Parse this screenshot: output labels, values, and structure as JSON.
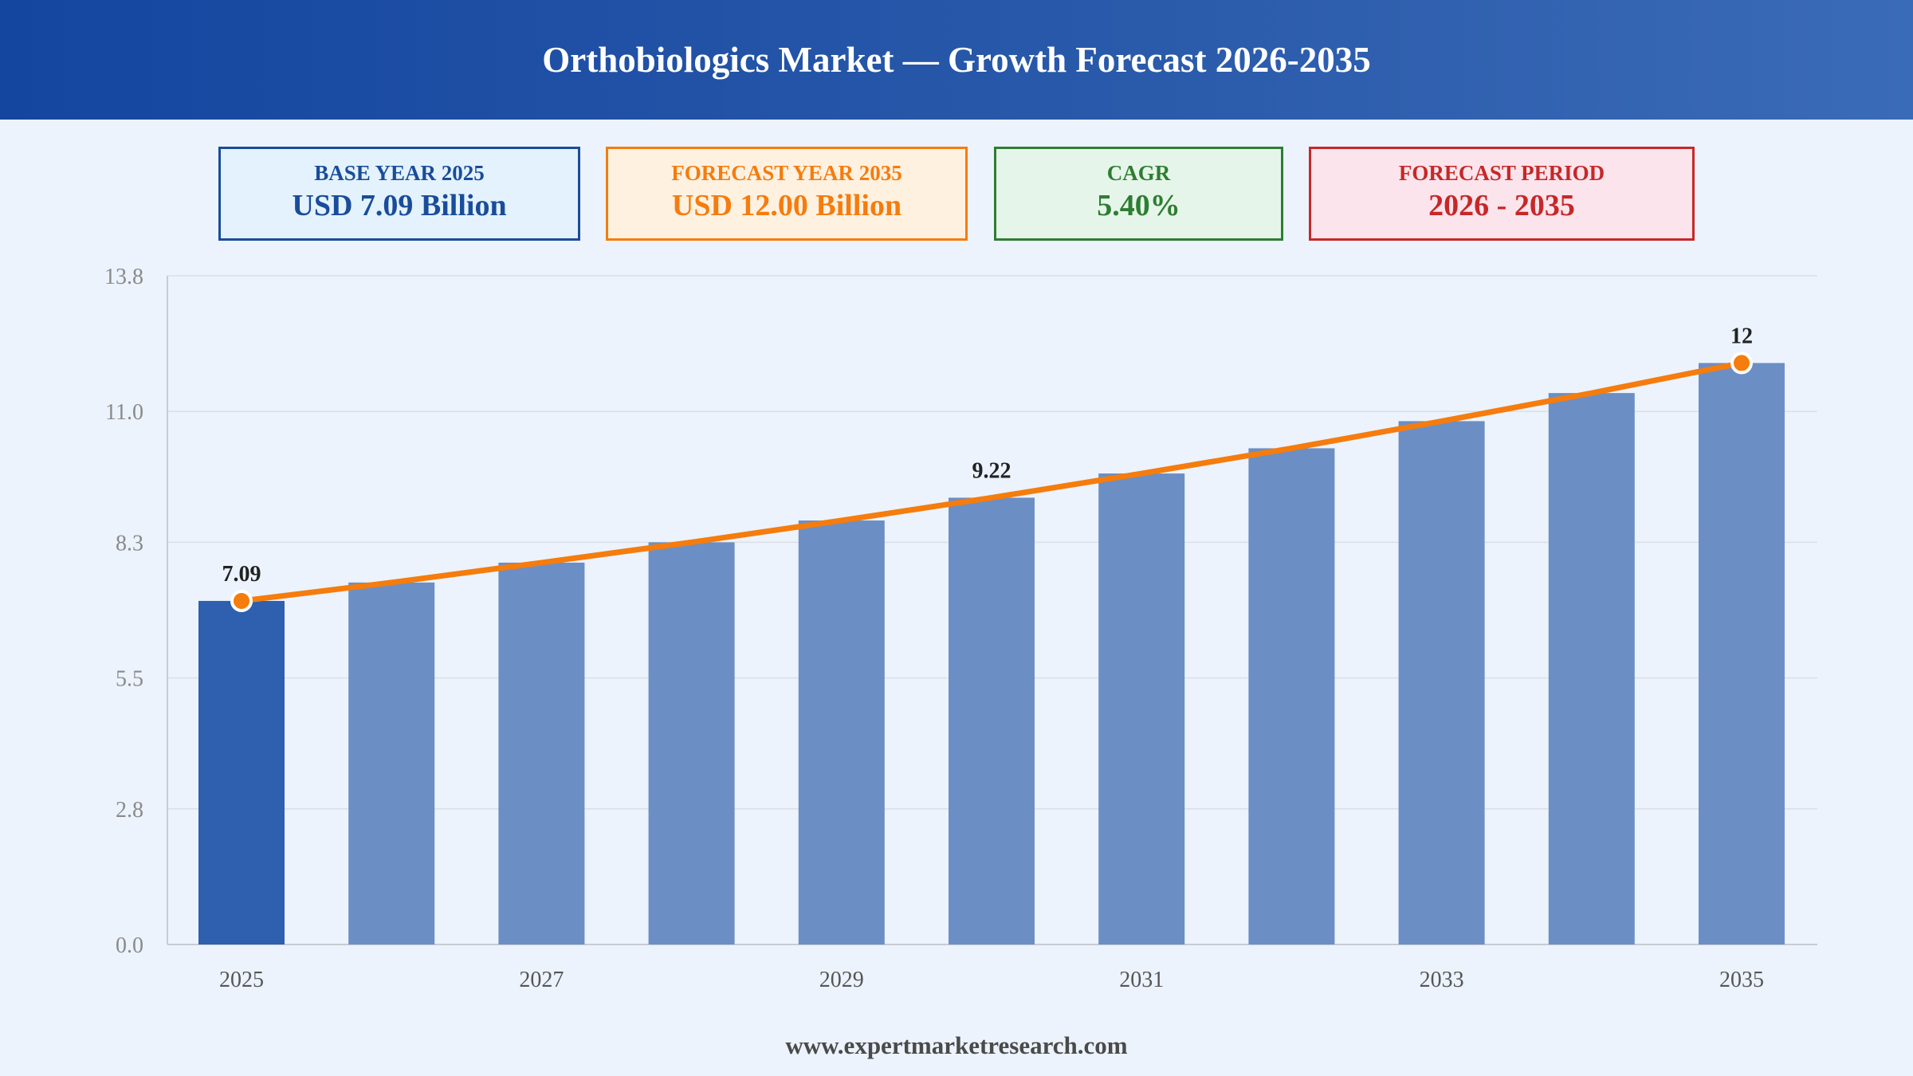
{
  "header": {
    "title": "Orthobiologics Market — Growth Forecast 2026-2035"
  },
  "cards": {
    "base": {
      "label": "BASE YEAR 2025",
      "value": "USD 7.09 Billion"
    },
    "forecast": {
      "label": "FORECAST YEAR 2035",
      "value": "USD 12.00 Billion"
    },
    "cagr": {
      "label": "CAGR",
      "value": "5.40%"
    },
    "period": {
      "label": "FORECAST PERIOD",
      "value": "2026 - 2035"
    }
  },
  "footer": {
    "text": "www.expertmarketresearch.com"
  },
  "colors": {
    "base_bar": "#2f5faf",
    "forecast_bar": "#6b8fc4",
    "trend_line": "#f57c0d",
    "grid": "#dcdfe4",
    "axis_text": "#8a8a8a"
  },
  "chart_data": {
    "type": "bar",
    "categories": [
      "2025",
      "2026",
      "2027",
      "2028",
      "2029",
      "2030",
      "2031",
      "2032",
      "2033",
      "2034",
      "2035"
    ],
    "values": [
      7.09,
      7.47,
      7.88,
      8.3,
      8.75,
      9.22,
      9.72,
      10.24,
      10.8,
      11.38,
      12.0
    ],
    "x_tick_labels": [
      "2025",
      "2027",
      "2029",
      "2031",
      "2033",
      "2035"
    ],
    "y_ticks": [
      "0.0",
      "2.8",
      "5.5",
      "8.3",
      "11.0",
      "13.8"
    ],
    "ylim": [
      0,
      13.8
    ],
    "trend_line": true,
    "data_labels": [
      {
        "index": 0,
        "text": "7.09"
      },
      {
        "index": 5,
        "text": "9.22"
      },
      {
        "index": 10,
        "text": "12"
      }
    ],
    "markers": [
      0,
      10
    ],
    "grid": true,
    "legend": "none"
  }
}
